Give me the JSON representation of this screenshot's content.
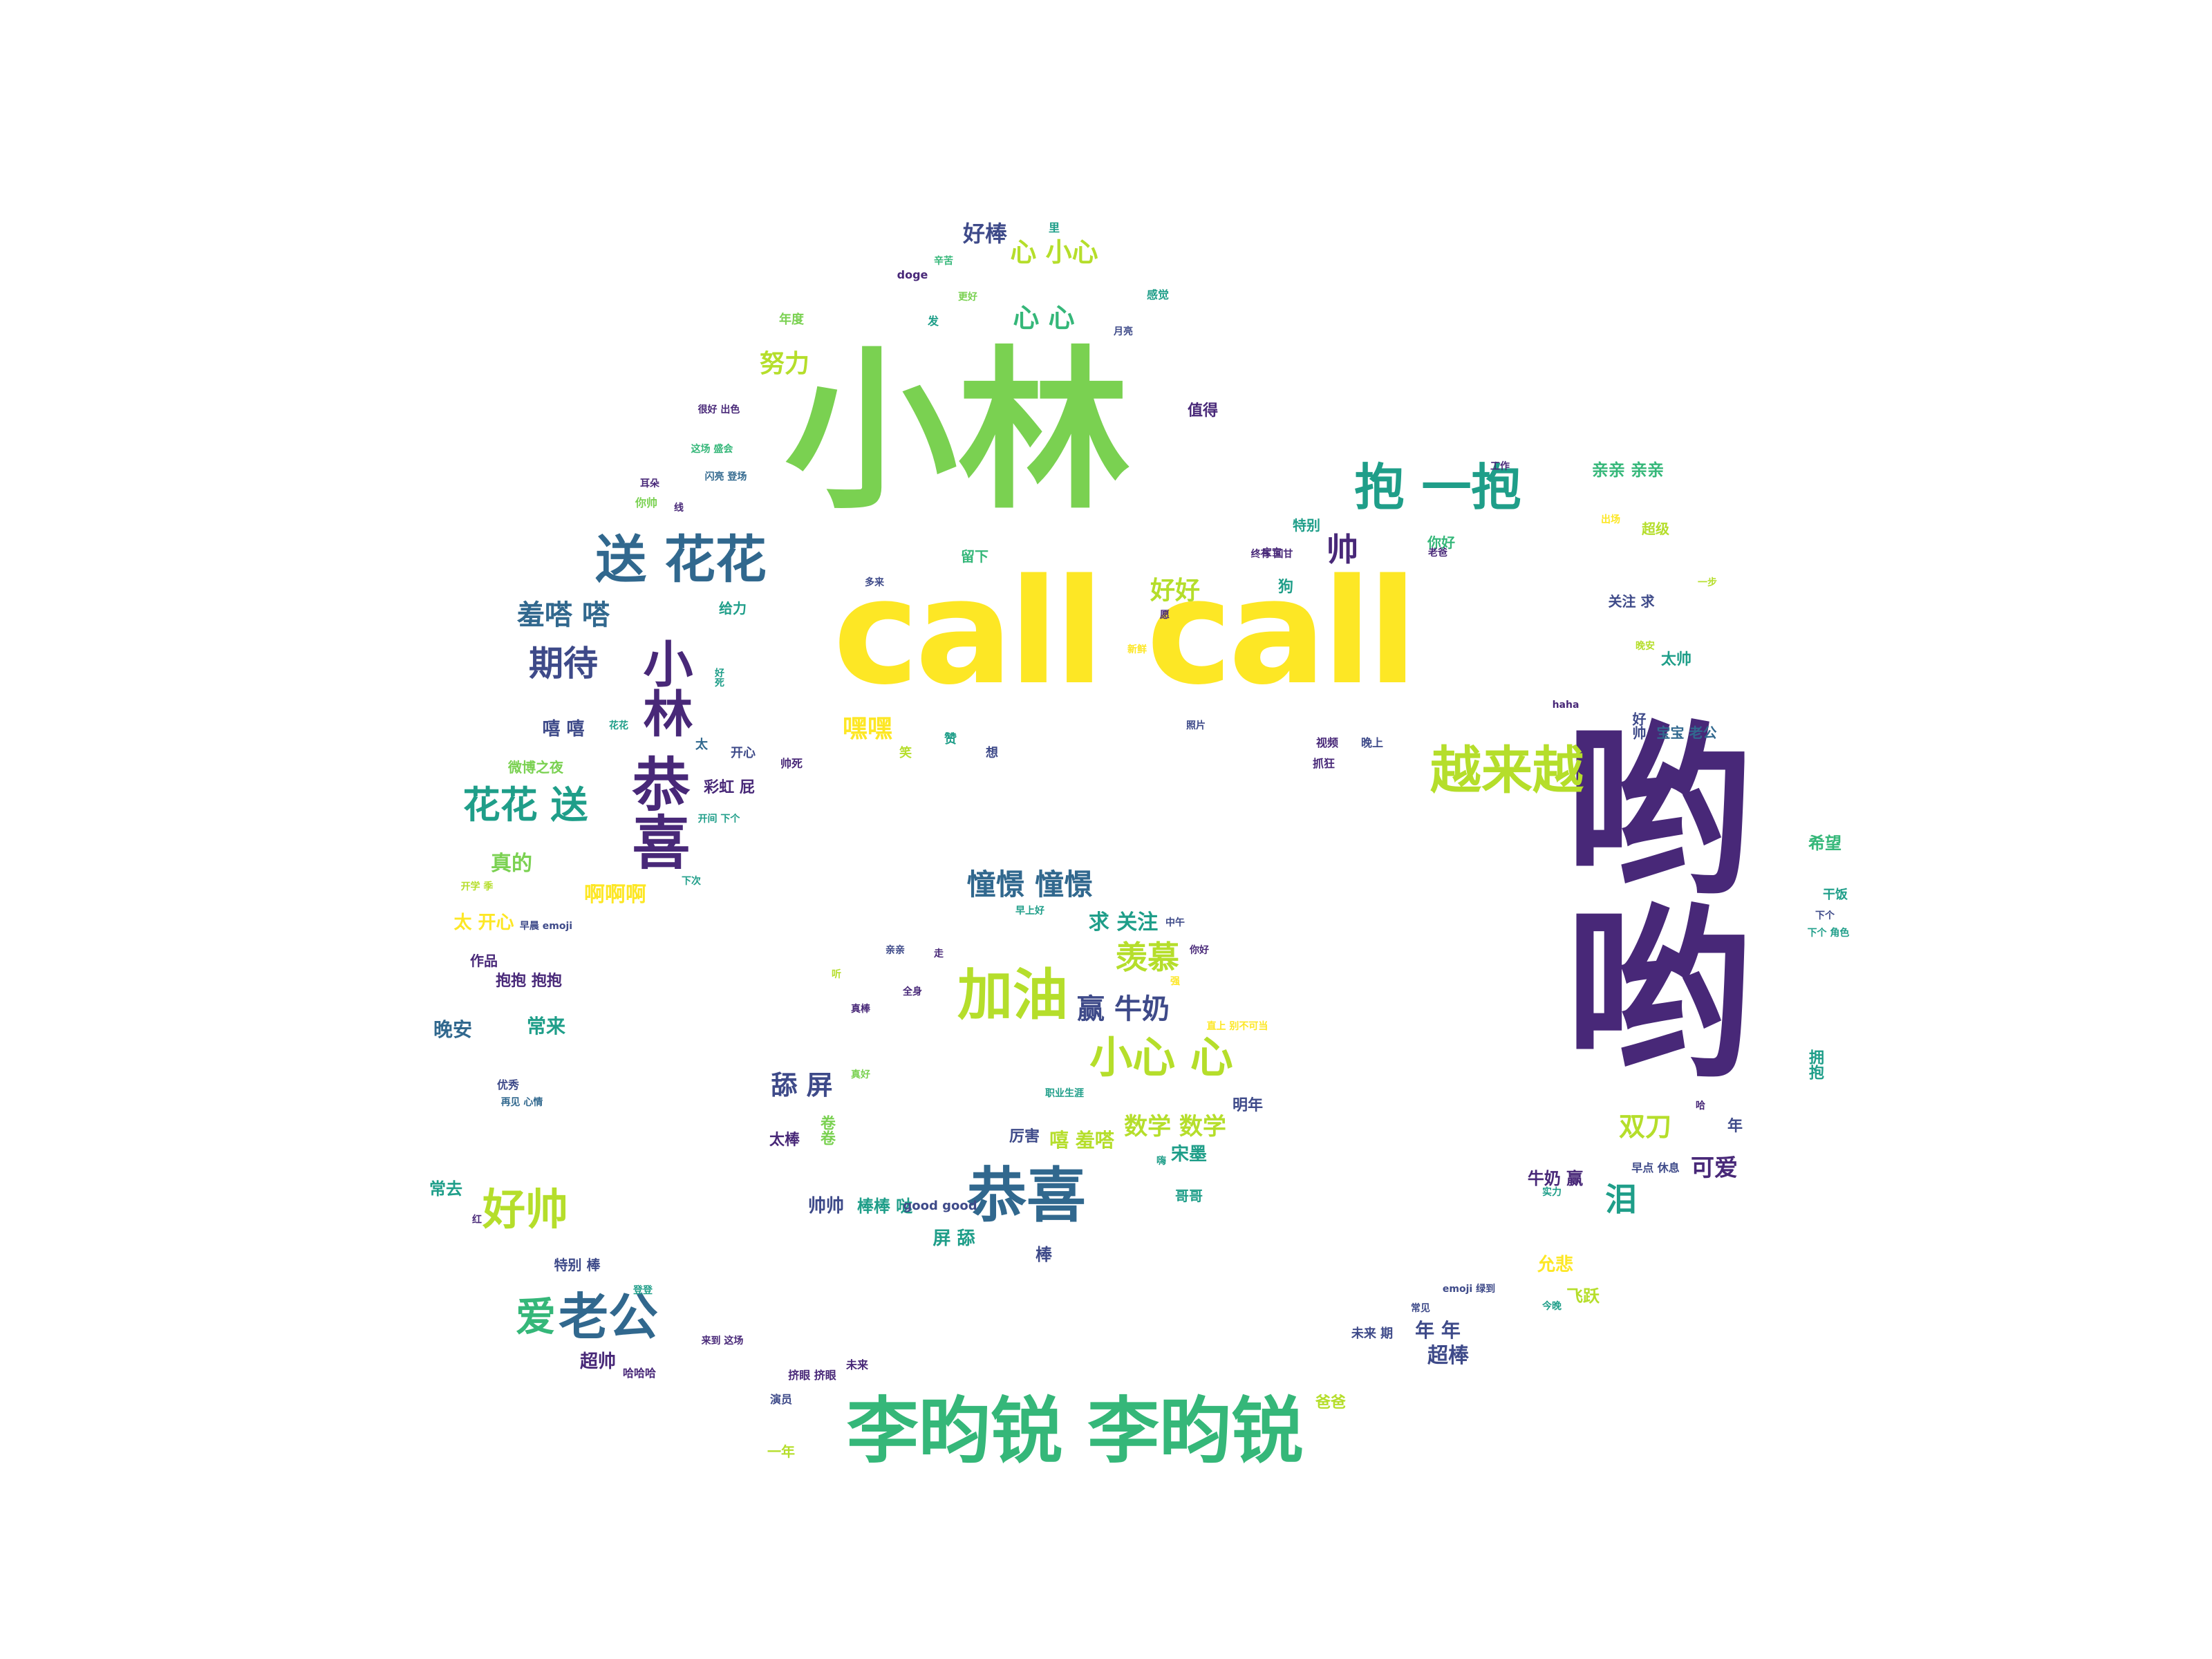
{
  "colors": {
    "yellow": "#fde725",
    "lime": "#b5de2b",
    "green": "#7ad151",
    "emerald": "#35b779",
    "teal": "#1f9e89",
    "blue": "#31688e",
    "slate": "#3e4a89",
    "purple": "#482878",
    "indigo": "#440154"
  },
  "words": [
    {
      "text": "call call",
      "color": "yellow"
    },
    {
      "text": "小林",
      "color": "green"
    },
    {
      "text": "哟",
      "color": "purple"
    },
    {
      "text": "哟",
      "color": "purple"
    },
    {
      "text": "李昀锐 李昀锐",
      "color": "emerald"
    },
    {
      "text": "恭喜",
      "color": "blue"
    },
    {
      "text": "加油",
      "color": "lime"
    },
    {
      "text": "越来越",
      "color": "lime"
    },
    {
      "text": "抱 一抱",
      "color": "teal"
    },
    {
      "text": "送 花花",
      "color": "blue"
    },
    {
      "text": "小心 心",
      "color": "lime"
    },
    {
      "text": "好帅",
      "color": "lime"
    },
    {
      "text": "老公",
      "color": "blue"
    },
    {
      "text": "花花 送",
      "color": "teal"
    },
    {
      "text": "恭喜",
      "color": "purple"
    },
    {
      "text": "小林",
      "color": "purple"
    },
    {
      "text": "羡慕",
      "color": "lime"
    },
    {
      "text": "憧憬 憧憬",
      "color": "blue"
    },
    {
      "text": "期待",
      "color": "slate"
    },
    {
      "text": "羞嗒 嗒",
      "color": "blue"
    },
    {
      "text": "努力",
      "color": "lime"
    },
    {
      "text": "好棒",
      "color": "slate"
    },
    {
      "text": "心 小心",
      "color": "lime"
    },
    {
      "text": "心 心",
      "color": "emerald"
    },
    {
      "text": "帅",
      "color": "purple"
    },
    {
      "text": "好好",
      "color": "lime"
    },
    {
      "text": "嘿嘿",
      "color": "yellow"
    },
    {
      "text": "双刀",
      "color": "lime"
    },
    {
      "text": "泪",
      "color": "teal"
    },
    {
      "text": "可爱",
      "color": "purple"
    },
    {
      "text": "舔 屏",
      "color": "slate"
    },
    {
      "text": "赢 牛奶",
      "color": "slate"
    },
    {
      "text": "求 关注",
      "color": "teal"
    },
    {
      "text": "数学 数学",
      "color": "lime"
    },
    {
      "text": "宋墨",
      "color": "teal"
    },
    {
      "text": "嘻 羞嗒",
      "color": "lime"
    },
    {
      "text": "爱",
      "color": "emerald"
    },
    {
      "text": "超帅",
      "color": "purple"
    },
    {
      "text": "超棒",
      "color": "slate"
    },
    {
      "text": "年 年",
      "color": "slate"
    },
    {
      "text": "卷卷",
      "color": "green"
    },
    {
      "text": "真的",
      "color": "green"
    },
    {
      "text": "啊啊啊",
      "color": "yellow"
    },
    {
      "text": "太 开心",
      "color": "yellow"
    },
    {
      "text": "晚安",
      "color": "blue"
    },
    {
      "text": "常来",
      "color": "teal"
    },
    {
      "text": "帅帅",
      "color": "slate"
    },
    {
      "text": "棒棒 哒",
      "color": "teal"
    },
    {
      "text": "good good",
      "color": "slate"
    },
    {
      "text": "屏 舔",
      "color": "teal"
    },
    {
      "text": "棒",
      "color": "slate"
    },
    {
      "text": "厉害",
      "color": "slate"
    },
    {
      "text": "太棒",
      "color": "purple"
    },
    {
      "text": "哥哥",
      "color": "teal"
    },
    {
      "text": "明年",
      "color": "slate"
    },
    {
      "text": "彩虹 屁",
      "color": "purple"
    },
    {
      "text": "嘻 嘻",
      "color": "slate"
    },
    {
      "text": "值得",
      "color": "purple"
    },
    {
      "text": "亲亲 亲亲",
      "color": "emerald"
    },
    {
      "text": "太帅",
      "color": "teal"
    },
    {
      "text": "希望",
      "color": "emerald"
    },
    {
      "text": "牛奶 赢",
      "color": "purple"
    },
    {
      "text": "允悲",
      "color": "yellow"
    },
    {
      "text": "飞跃",
      "color": "lime"
    },
    {
      "text": "常去",
      "color": "teal"
    },
    {
      "text": "特别 棒",
      "color": "slate"
    },
    {
      "text": "抱抱 抱抱",
      "color": "purple"
    },
    {
      "text": "作品",
      "color": "purple"
    },
    {
      "text": "干饭",
      "color": "teal"
    },
    {
      "text": "关注 求",
      "color": "slate"
    },
    {
      "text": "超级",
      "color": "lime"
    },
    {
      "text": "你好",
      "color": "emerald"
    },
    {
      "text": "留下",
      "color": "emerald"
    },
    {
      "text": "特别",
      "color": "teal"
    },
    {
      "text": "给力",
      "color": "teal"
    },
    {
      "text": "狗",
      "color": "teal"
    },
    {
      "text": "未来 期",
      "color": "slate"
    },
    {
      "text": "一年",
      "color": "lime"
    },
    {
      "text": "爸爸",
      "color": "lime"
    },
    {
      "text": "年",
      "color": "slate"
    },
    {
      "text": "开心",
      "color": "slate"
    },
    {
      "text": "太",
      "color": "blue"
    },
    {
      "text": "想",
      "color": "slate"
    },
    {
      "text": "赞",
      "color": "teal"
    },
    {
      "text": "笑",
      "color": "lime"
    },
    {
      "text": "帅死",
      "color": "purple"
    },
    {
      "text": "晚上",
      "color": "slate"
    },
    {
      "text": "视频",
      "color": "purple"
    },
    {
      "text": "抓狂",
      "color": "purple"
    },
    {
      "text": "照片",
      "color": "slate"
    },
    {
      "text": "haha",
      "color": "purple"
    },
    {
      "text": "拥抱",
      "color": "teal"
    },
    {
      "text": "doge",
      "color": "purple"
    },
    {
      "text": "发",
      "color": "teal"
    },
    {
      "text": "里",
      "color": "teal"
    },
    {
      "text": "感觉",
      "color": "teal"
    },
    {
      "text": "年度",
      "color": "green"
    },
    {
      "text": "月亮",
      "color": "slate"
    },
    {
      "text": "很好 出色",
      "color": "purple"
    },
    {
      "text": "这场 盛会",
      "color": "emerald"
    },
    {
      "text": "闪亮 登场",
      "color": "blue"
    },
    {
      "text": "你帅",
      "color": "green"
    },
    {
      "text": "工作",
      "color": "purple"
    },
    {
      "text": "出场",
      "color": "yellow"
    },
    {
      "text": "一步",
      "color": "lime"
    },
    {
      "text": "晚安",
      "color": "lime"
    },
    {
      "text": "下个 角色",
      "color": "teal"
    },
    {
      "text": "早点 休息",
      "color": "slate"
    },
    {
      "text": "微博之夜",
      "color": "green"
    },
    {
      "text": "开学 季",
      "color": "lime"
    },
    {
      "text": "早晨 emoji",
      "color": "slate"
    },
    {
      "text": "再见 心情",
      "color": "blue"
    },
    {
      "text": "优秀",
      "color": "slate"
    },
    {
      "text": "哈哈哈",
      "color": "purple"
    },
    {
      "text": "来到 这场",
      "color": "purple"
    },
    {
      "text": "挤眼 挤眼",
      "color": "purple"
    },
    {
      "text": "未来",
      "color": "purple"
    },
    {
      "text": "演员",
      "color": "slate"
    },
    {
      "text": "emoji 绿到",
      "color": "slate"
    },
    {
      "text": "常见",
      "color": "slate"
    },
    {
      "text": "今晚",
      "color": "teal"
    },
    {
      "text": "职业生涯",
      "color": "teal"
    },
    {
      "text": "真棒",
      "color": "purple"
    },
    {
      "text": "全身",
      "color": "purple"
    },
    {
      "text": "早上好",
      "color": "teal"
    },
    {
      "text": "中午",
      "color": "slate"
    },
    {
      "text": "直上 别不可当",
      "color": "yellow"
    },
    {
      "text": "你好",
      "color": "purple"
    },
    {
      "text": "宝宝",
      "color": "purple"
    },
    {
      "text": "多来",
      "color": "slate"
    },
    {
      "text": "老爸",
      "color": "purple"
    },
    {
      "text": "好死",
      "color": "teal"
    },
    {
      "text": "花花",
      "color": "teal"
    },
    {
      "text": "好帅",
      "color": "slate"
    },
    {
      "text": "更好",
      "color": "green"
    },
    {
      "text": "辛苦",
      "color": "emerald"
    },
    {
      "text": "下个",
      "color": "slate"
    },
    {
      "text": "下次",
      "color": "teal"
    },
    {
      "text": "开间 下个",
      "color": "teal"
    },
    {
      "text": "耳朵",
      "color": "purple"
    },
    {
      "text": "红",
      "color": "purple"
    },
    {
      "text": "登登",
      "color": "teal"
    },
    {
      "text": "亲亲",
      "color": "slate"
    },
    {
      "text": "真好",
      "color": "green"
    },
    {
      "text": "新鲜",
      "color": "yellow"
    },
    {
      "text": "线",
      "color": "purple"
    },
    {
      "text": "终有 回甘",
      "color": "purple"
    },
    {
      "text": "强",
      "color": "yellow"
    },
    {
      "text": "实力",
      "color": "teal"
    },
    {
      "text": "宝宝 老公",
      "color": "blue"
    },
    {
      "text": "愿",
      "color": "purple"
    },
    {
      "text": "走",
      "color": "purple"
    },
    {
      "text": "听",
      "color": "lime"
    },
    {
      "text": "哈",
      "color": "purple"
    },
    {
      "text": "嗨",
      "color": "teal"
    }
  ]
}
